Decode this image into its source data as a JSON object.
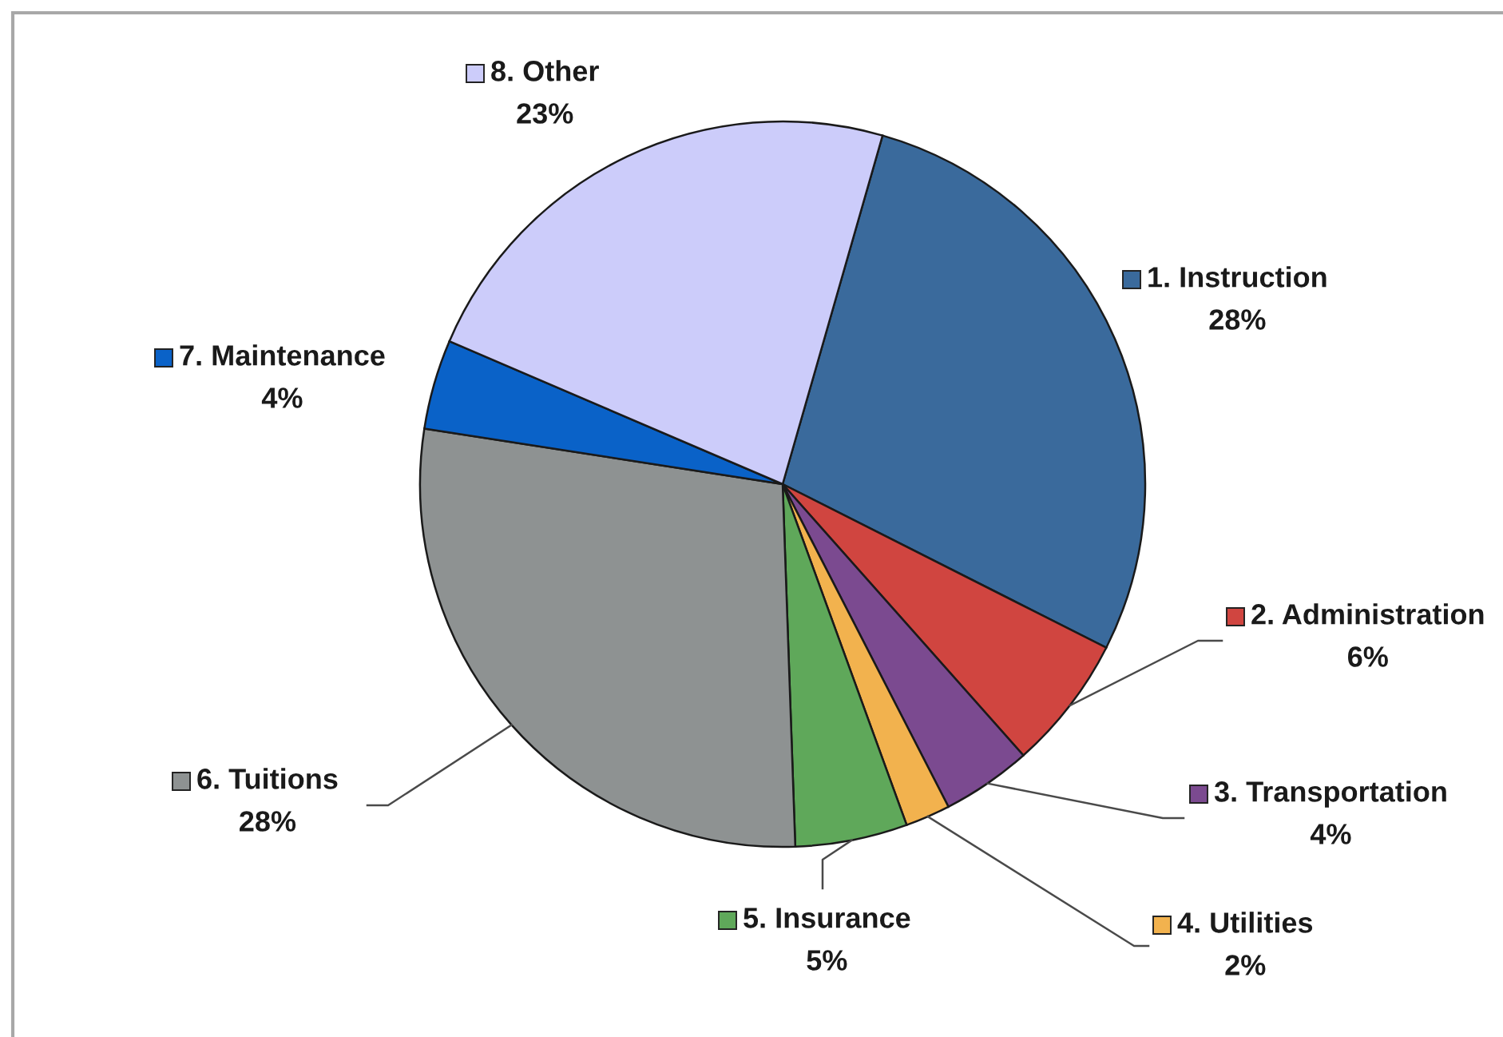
{
  "chart_data": {
    "type": "pie",
    "categories": [
      "1. Instruction",
      "2. Administration",
      "3. Transportation",
      "4. Utilities",
      "5. Insurance",
      "6. Tuitions",
      "7. Maintenance",
      "8. Other"
    ],
    "values": [
      28,
      6,
      4,
      2,
      5,
      28,
      4,
      23
    ],
    "colors": [
      "#3a6a9c",
      "#d04540",
      "#7b4a90",
      "#f2b24e",
      "#5fa85a",
      "#8e9292",
      "#0a62c8",
      "#ccccfa"
    ],
    "value_labels": [
      "28%",
      "6%",
      "4%",
      "2%",
      "5%",
      "28%",
      "4%",
      "23%"
    ],
    "legend": "bottom right"
  }
}
